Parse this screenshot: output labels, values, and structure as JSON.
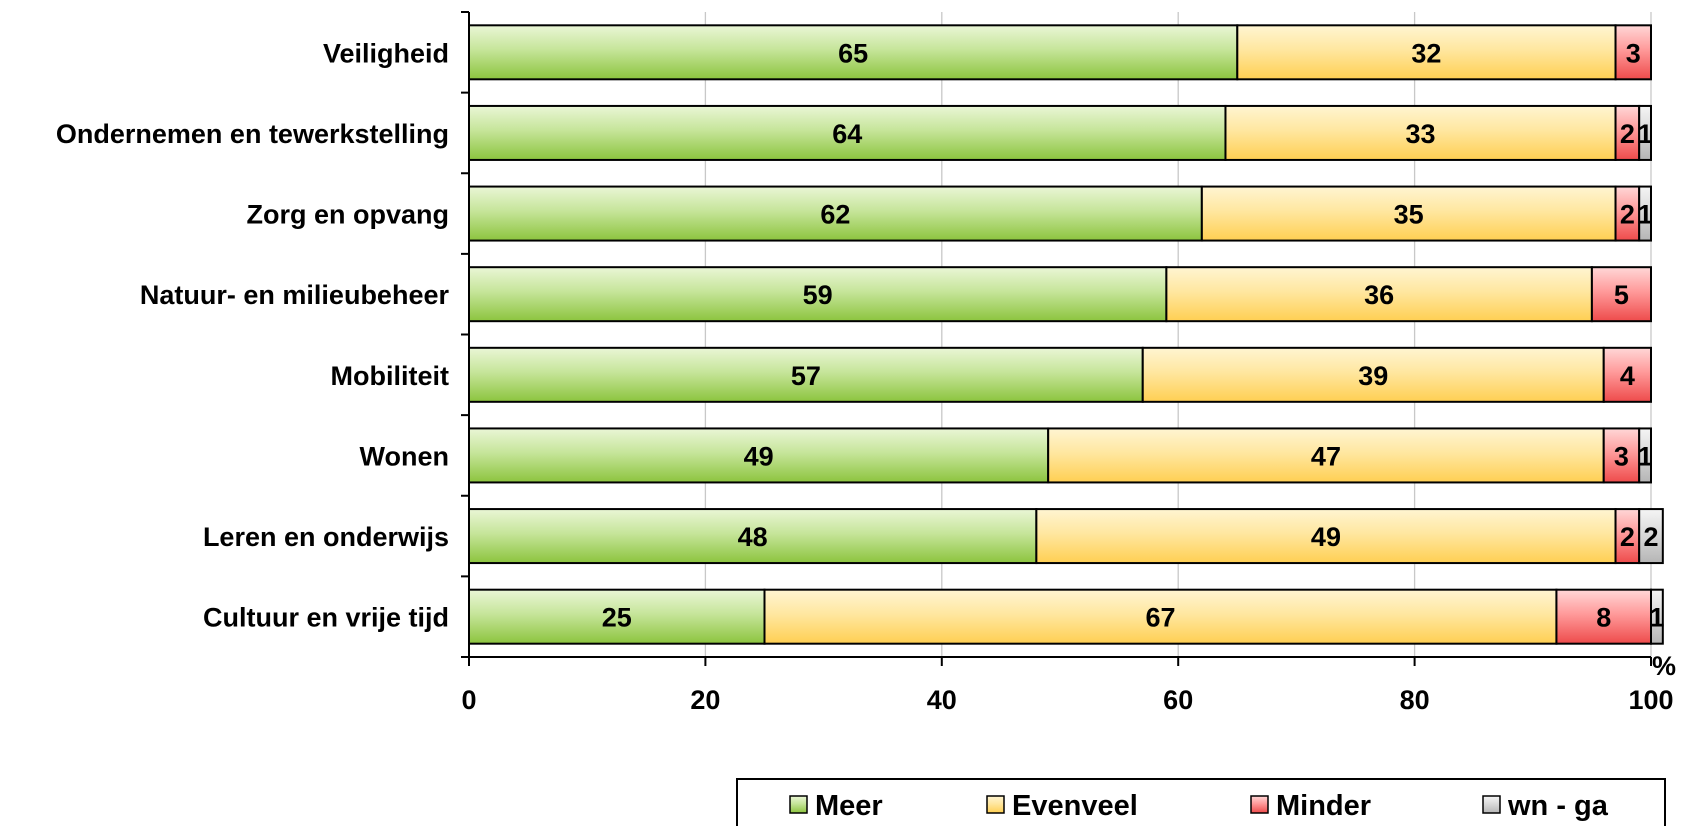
{
  "chart_data": {
    "type": "bar",
    "orientation": "horizontal",
    "stacked": true,
    "title": "",
    "xlabel": "%",
    "ylabel": "",
    "xlim": [
      0,
      100
    ],
    "xticks": [
      "0",
      "20",
      "40",
      "60",
      "80",
      "100"
    ],
    "grid": true,
    "legend_position": "bottom-right",
    "categories": [
      "Veiligheid",
      "Ondernemen en tewerkstelling",
      "Zorg en opvang",
      "Natuur- en milieubeheer",
      "Mobiliteit",
      "Wonen",
      "Leren en onderwijs",
      "Cultuur en vrije tijd"
    ],
    "series": [
      {
        "name": "Meer",
        "values": [
          65,
          64,
          62,
          59,
          57,
          49,
          48,
          25
        ],
        "labels": [
          "65",
          "64",
          "62",
          "59",
          "57",
          "49",
          "48",
          "25"
        ],
        "color": "#9ACD4A"
      },
      {
        "name": "Evenveel",
        "values": [
          32,
          33,
          35,
          36,
          39,
          47,
          49,
          67
        ],
        "labels": [
          "32",
          "33",
          "35",
          "36",
          "39",
          "47",
          "49",
          "67"
        ],
        "color": "#FFD75E"
      },
      {
        "name": "Minder",
        "values": [
          3,
          2,
          2,
          5,
          4,
          3,
          2,
          8
        ],
        "labels": [
          "3",
          "2",
          "2",
          "5",
          "4",
          "3",
          "2",
          "8"
        ],
        "color": "#F25A5A"
      },
      {
        "name": "wn - ga",
        "values": [
          0,
          1,
          1,
          0,
          0,
          1,
          2,
          1
        ],
        "labels": [
          "",
          "1",
          "1",
          "",
          "",
          "1",
          "2",
          "1"
        ],
        "color": "#BEBEBE"
      }
    ]
  }
}
